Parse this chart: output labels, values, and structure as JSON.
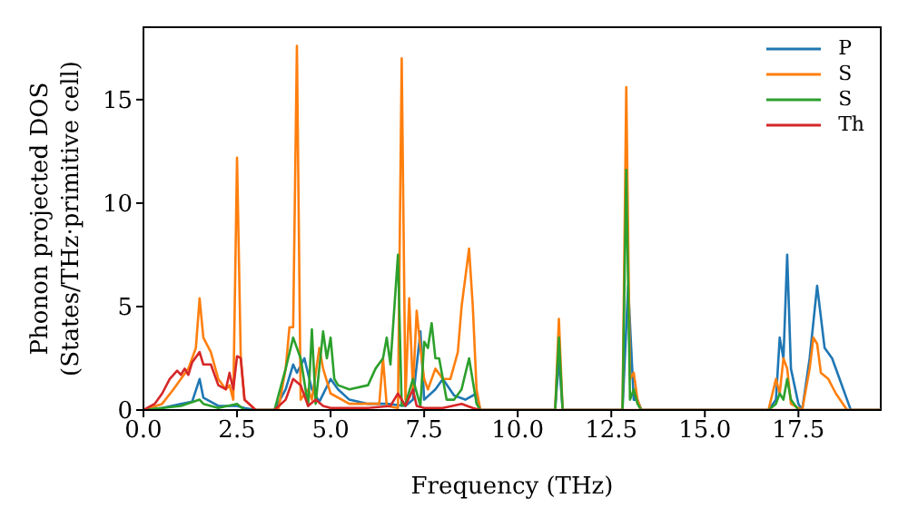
{
  "chart_data": {
    "type": "line",
    "xlabel": "Frequency (THz)",
    "ylabel": "Phonon projected DOS\n(States/THz·primitive cell)",
    "xlim": [
      0,
      19.7
    ],
    "ylim": [
      0,
      18.5
    ],
    "xticks": [
      {
        "value": 0,
        "label": "0.0"
      },
      {
        "value": 2.5,
        "label": "2.5"
      },
      {
        "value": 5,
        "label": "5.0"
      },
      {
        "value": 7.5,
        "label": "7.5"
      },
      {
        "value": 10,
        "label": "10.0"
      },
      {
        "value": 12.5,
        "label": "12.5"
      },
      {
        "value": 15,
        "label": "15.0"
      },
      {
        "value": 17.5,
        "label": "17.5"
      }
    ],
    "yticks": [
      0,
      5,
      10,
      15
    ],
    "legend": "top right",
    "grid": false,
    "marker": "none",
    "line_style": "solid",
    "series": [
      {
        "name": "P",
        "color": "#1f77b4",
        "x": [
          0,
          0.5,
          1.0,
          1.3,
          1.5,
          1.6,
          2.0,
          2.5,
          2.7,
          3.0,
          3.5,
          3.8,
          4.0,
          4.1,
          4.3,
          4.5,
          4.7,
          5.0,
          5.2,
          5.5,
          6.0,
          6.5,
          7.0,
          7.2,
          7.4,
          7.5,
          7.8,
          8.0,
          8.3,
          8.6,
          8.9,
          9.0,
          11.0,
          11.1,
          11.2,
          12.8,
          12.95,
          13.1,
          13.2,
          13.3,
          16.7,
          16.9,
          17.0,
          17.1,
          17.2,
          17.3,
          17.5,
          17.6,
          17.8,
          18.0,
          18.2,
          18.4,
          18.6,
          18.8,
          18.9,
          19.7
        ],
        "values": [
          0,
          0.1,
          0.3,
          0.4,
          1.5,
          0.6,
          0.2,
          0.2,
          0.1,
          0,
          0,
          1.0,
          2.2,
          1.8,
          2.5,
          1.0,
          0.4,
          1.5,
          1.0,
          0.5,
          0.3,
          0.3,
          0.2,
          0.5,
          3.8,
          0.5,
          1.0,
          1.5,
          0.7,
          0.5,
          0.8,
          0,
          0,
          2.5,
          0,
          0,
          6.0,
          0.5,
          0.5,
          0,
          0,
          0.5,
          3.5,
          2.5,
          7.5,
          2.0,
          0.3,
          0,
          2.5,
          6.0,
          3.0,
          2.5,
          1.5,
          0.5,
          0,
          0
        ]
      },
      {
        "name": "S",
        "color": "#ff7f0e",
        "x": [
          0,
          0.5,
          0.8,
          1.0,
          1.2,
          1.4,
          1.5,
          1.6,
          1.8,
          2.0,
          2.2,
          2.3,
          2.4,
          2.5,
          2.6,
          2.7,
          3.0,
          3.6,
          3.8,
          3.9,
          4.0,
          4.1,
          4.2,
          4.4,
          4.5,
          4.7,
          4.8,
          5.0,
          5.5,
          6.0,
          6.3,
          6.4,
          6.5,
          6.8,
          6.9,
          7.0,
          7.1,
          7.2,
          7.3,
          7.4,
          7.5,
          7.6,
          7.8,
          8.0,
          8.2,
          8.4,
          8.5,
          8.7,
          8.8,
          8.9,
          9.0,
          11.0,
          11.1,
          11.2,
          12.8,
          12.9,
          13.0,
          13.1,
          13.2,
          13.3,
          16.7,
          16.9,
          17.0,
          17.1,
          17.2,
          17.3,
          17.6,
          17.8,
          17.9,
          18.0,
          18.1,
          18.3,
          18.5,
          18.8,
          19.7
        ],
        "values": [
          0,
          0.3,
          1.0,
          1.5,
          2.0,
          3.0,
          5.4,
          3.5,
          2.8,
          1.5,
          1.0,
          1.2,
          0.5,
          12.2,
          2.5,
          0.5,
          0,
          0,
          2.0,
          4.0,
          4.0,
          17.6,
          0.5,
          1.0,
          0.5,
          3.0,
          2.0,
          0.8,
          0.3,
          0.3,
          0.3,
          2.5,
          0.2,
          0.1,
          17.0,
          0.5,
          5.4,
          1.0,
          4.8,
          3.0,
          1.5,
          1.0,
          2.0,
          1.5,
          1.5,
          2.8,
          5.0,
          7.8,
          5.0,
          1.0,
          0,
          0,
          4.4,
          0,
          0,
          15.6,
          1.5,
          1.8,
          0.5,
          0,
          0,
          1.5,
          0.8,
          2.5,
          2.0,
          0.3,
          0,
          2.0,
          3.5,
          3.2,
          1.8,
          1.5,
          0.8,
          0,
          0
        ]
      },
      {
        "name": "S",
        "color": "#2ca02c",
        "x": [
          0,
          0.5,
          1.0,
          1.5,
          1.6,
          2.0,
          2.5,
          2.7,
          3.5,
          3.8,
          4.0,
          4.2,
          4.4,
          4.5,
          4.6,
          4.8,
          4.9,
          5.0,
          5.1,
          5.2,
          5.5,
          6.0,
          6.2,
          6.4,
          6.5,
          6.6,
          6.8,
          6.9,
          7.0,
          7.2,
          7.4,
          7.5,
          7.6,
          7.7,
          7.8,
          7.9,
          8.1,
          8.3,
          8.5,
          8.7,
          8.9,
          9.0,
          11.0,
          11.1,
          11.2,
          12.8,
          12.9,
          13.0,
          13.1,
          13.2,
          13.3,
          16.7,
          16.9,
          17.0,
          17.1,
          17.2,
          17.3,
          17.5,
          19.7
        ],
        "values": [
          0,
          0.1,
          0.2,
          0.5,
          0.3,
          0.1,
          0.3,
          0,
          0,
          2.0,
          3.5,
          2.5,
          0.2,
          3.9,
          0.3,
          3.8,
          2.5,
          3.5,
          1.5,
          1.2,
          1.0,
          1.2,
          2.0,
          2.5,
          3.5,
          2.2,
          7.5,
          0.2,
          0.3,
          1.5,
          0.2,
          3.3,
          3.0,
          4.2,
          2.5,
          2.5,
          0.5,
          0.5,
          1.0,
          2.5,
          0.3,
          0,
          0,
          3.5,
          0,
          0,
          11.6,
          0.5,
          1.0,
          0.3,
          0,
          0,
          0.3,
          0.8,
          0.5,
          1.5,
          0.5,
          0,
          0
        ]
      },
      {
        "name": "Th",
        "color": "#d62728",
        "x": [
          0,
          0.3,
          0.5,
          0.7,
          0.9,
          1.0,
          1.1,
          1.2,
          1.3,
          1.5,
          1.6,
          1.8,
          2.0,
          2.2,
          2.3,
          2.4,
          2.5,
          2.6,
          2.7,
          3.0,
          3.5,
          3.8,
          4.0,
          4.2,
          4.4,
          4.6,
          4.8,
          5.0,
          6.0,
          6.6,
          6.8,
          7.0,
          7.2,
          7.3,
          7.5,
          8.0,
          8.5,
          8.8,
          9.0,
          19.7
        ],
        "values": [
          0,
          0.3,
          0.8,
          1.5,
          1.9,
          1.7,
          2.0,
          1.7,
          2.3,
          2.8,
          2.2,
          2.2,
          1.2,
          1.0,
          1.8,
          1.0,
          2.6,
          2.5,
          0.5,
          0,
          0,
          0.5,
          1.5,
          1.2,
          0.2,
          0.5,
          0.2,
          0.1,
          0.1,
          0.2,
          0.8,
          0.2,
          1.0,
          0.2,
          0.1,
          0.1,
          0.3,
          0.1,
          0,
          0
        ]
      }
    ]
  }
}
